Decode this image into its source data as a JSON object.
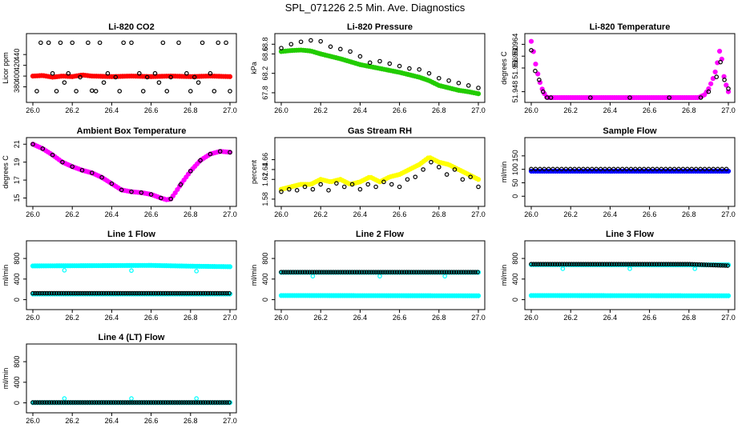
{
  "page_title": "SPL_071226  2.5 Min. Ave. Diagnostics",
  "chart_data": [
    {
      "type": "scatter",
      "title": "Li-820 CO2",
      "ylabel": "Licor ppm",
      "xlim": [
        26.0,
        27.0
      ],
      "ylim": [
        360,
        470
      ],
      "xticks": [
        "26.0",
        "26.2",
        "26.4",
        "26.6",
        "26.8",
        "27.0"
      ],
      "yticks": [
        {
          "v": 380,
          "t": "380"
        },
        {
          "v": 400,
          "t": "400"
        },
        {
          "v": 420,
          "t": "420"
        },
        {
          "v": 440,
          "t": "440"
        }
      ],
      "series": [
        {
          "color": "#ff0000",
          "style": "dense",
          "x": [
            26.0,
            26.05,
            26.1,
            26.15,
            26.2,
            26.25,
            26.3,
            26.4,
            26.5,
            26.6,
            26.7,
            26.8,
            26.9,
            27.0
          ],
          "y": [
            400,
            401,
            398,
            400,
            399,
            402,
            400,
            399,
            400,
            399,
            400,
            399,
            400,
            399
          ]
        },
        {
          "color": "#000000",
          "style": "open",
          "x": [
            26.04,
            26.08,
            26.1,
            26.14,
            26.18,
            26.2,
            26.24,
            26.28,
            26.3,
            26.34,
            26.38,
            26.42,
            26.46,
            26.5,
            26.54,
            26.58,
            26.62,
            26.66,
            26.7,
            26.74,
            26.78,
            26.82,
            26.86,
            26.9,
            26.94,
            26.98,
            26.02,
            26.12,
            26.22,
            26.32,
            26.44,
            26.56,
            26.68,
            26.8,
            26.92,
            27.0,
            26.16,
            26.36,
            26.64,
            26.84
          ],
          "y": [
            462,
            462,
            405,
            462,
            405,
            462,
            398,
            462,
            373,
            462,
            405,
            398,
            462,
            462,
            405,
            398,
            405,
            462,
            398,
            462,
            405,
            398,
            462,
            405,
            462,
            462,
            372,
            372,
            372,
            372,
            372,
            372,
            372,
            372,
            372,
            372,
            388,
            388,
            388,
            388
          ]
        }
      ]
    },
    {
      "type": "scatter",
      "title": "Li-820 Pressure",
      "ylabel": "kPa",
      "xlim": [
        26.0,
        27.0
      ],
      "ylim": [
        67.7,
        68.92
      ],
      "xticks": [
        "26.0",
        "26.2",
        "26.4",
        "26.6",
        "26.8",
        "27.0"
      ],
      "yticks": [
        {
          "v": 67.8,
          "t": "67.8"
        },
        {
          "v": 68.2,
          "t": "68.2"
        },
        {
          "v": 68.6,
          "t": "68.6"
        },
        {
          "v": 68.8,
          "t": "68.8"
        }
      ],
      "series": [
        {
          "color": "#22cc00",
          "style": "dense",
          "x": [
            26.0,
            26.05,
            26.1,
            26.15,
            26.2,
            26.3,
            26.4,
            26.5,
            26.6,
            26.7,
            26.75,
            26.8,
            26.85,
            26.9,
            26.95,
            27.0
          ],
          "y": [
            68.65,
            68.67,
            68.68,
            68.66,
            68.6,
            68.5,
            68.38,
            68.3,
            68.22,
            68.12,
            68.05,
            67.95,
            67.9,
            67.85,
            67.82,
            67.78
          ]
        },
        {
          "color": "#000000",
          "style": "open",
          "x": [
            26.0,
            26.05,
            26.1,
            26.15,
            26.2,
            26.25,
            26.3,
            26.35,
            26.4,
            26.45,
            26.5,
            26.55,
            26.6,
            26.65,
            26.7,
            26.75,
            26.8,
            26.85,
            26.9,
            26.95,
            27.0
          ],
          "y": [
            68.72,
            68.8,
            68.85,
            68.88,
            68.86,
            68.75,
            68.7,
            68.65,
            68.55,
            68.42,
            68.45,
            68.4,
            68.35,
            68.3,
            68.28,
            68.2,
            68.1,
            68.05,
            68.0,
            67.95,
            67.9
          ]
        }
      ]
    },
    {
      "type": "scatter",
      "title": "Li-820 Temperature",
      "ylabel": "degrees C",
      "xlim": [
        26.0,
        27.0
      ],
      "ylim": [
        51.946,
        51.966
      ],
      "xticks": [
        "26.0",
        "26.2",
        "26.4",
        "26.6",
        "26.8",
        "27.0"
      ],
      "yticks": [
        {
          "v": 51.948,
          "t": "51.948"
        },
        {
          "v": 51.956,
          "t": "51.956"
        },
        {
          "v": 51.96,
          "t": "51.960"
        },
        {
          "v": 51.964,
          "t": "51.964"
        }
      ],
      "series": [
        {
          "color": "#ff00ff",
          "style": "dense",
          "x": [
            26.0,
            26.01,
            26.02,
            26.03,
            26.04,
            26.05,
            26.06,
            26.07,
            26.08,
            26.1,
            26.2,
            26.4,
            26.6,
            26.8,
            26.85,
            26.88,
            26.9,
            26.92,
            26.94,
            26.95,
            26.96,
            26.97,
            26.98,
            26.99,
            27.0
          ],
          "y": [
            51.965,
            51.962,
            51.958,
            51.955,
            51.952,
            51.95,
            51.948,
            51.947,
            51.946,
            51.946,
            51.946,
            51.946,
            51.946,
            51.946,
            51.946,
            51.947,
            51.949,
            51.952,
            51.956,
            51.96,
            51.963,
            51.957,
            51.952,
            51.95,
            51.948
          ]
        },
        {
          "color": "#000000",
          "style": "open",
          "x": [
            26.0,
            26.02,
            26.04,
            26.06,
            26.08,
            26.1,
            26.3,
            26.5,
            26.7,
            26.86,
            26.9,
            26.94,
            26.96,
            26.98,
            27.0
          ],
          "y": [
            51.962,
            51.955,
            51.952,
            51.948,
            51.946,
            51.946,
            51.946,
            51.946,
            51.946,
            51.946,
            51.948,
            51.953,
            51.958,
            51.952,
            51.949
          ]
        }
      ]
    },
    {
      "type": "scatter",
      "title": "Ambient Box Temperature",
      "ylabel": "degrees C",
      "xlim": [
        26.0,
        27.0
      ],
      "ylim": [
        14.6,
        21.2
      ],
      "xticks": [
        "26.0",
        "26.2",
        "26.4",
        "26.6",
        "26.8",
        "27.0"
      ],
      "yticks": [
        {
          "v": 15,
          "t": "15"
        },
        {
          "v": 17,
          "t": "17"
        },
        {
          "v": 19,
          "t": "19"
        },
        {
          "v": 21,
          "t": "21"
        }
      ],
      "series": [
        {
          "color": "#ff00ff",
          "style": "dense",
          "x": [
            26.0,
            26.05,
            26.1,
            26.15,
            26.2,
            26.25,
            26.3,
            26.35,
            26.4,
            26.45,
            26.5,
            26.55,
            26.6,
            26.65,
            26.68,
            26.7,
            26.72,
            26.75,
            26.8,
            26.85,
            26.9,
            26.95,
            27.0
          ],
          "y": [
            21.0,
            20.5,
            19.8,
            19.0,
            18.5,
            18.1,
            17.8,
            17.3,
            16.6,
            15.9,
            15.7,
            15.6,
            15.4,
            15.0,
            14.8,
            14.9,
            15.5,
            16.5,
            18.0,
            19.2,
            19.9,
            20.2,
            20.1
          ]
        },
        {
          "color": "#000000",
          "style": "open",
          "x": [
            26.0,
            26.05,
            26.1,
            26.15,
            26.2,
            26.25,
            26.3,
            26.35,
            26.4,
            26.45,
            26.5,
            26.55,
            26.6,
            26.65,
            26.7,
            26.75,
            26.8,
            26.85,
            26.9,
            26.95,
            27.0
          ],
          "y": [
            21.0,
            20.5,
            19.8,
            19.0,
            18.5,
            18.1,
            17.8,
            17.3,
            16.6,
            15.9,
            15.7,
            15.6,
            15.4,
            15.0,
            14.9,
            16.5,
            18.0,
            19.2,
            19.9,
            20.2,
            20.1
          ]
        }
      ]
    },
    {
      "type": "scatter",
      "title": "Gas Stream RH",
      "ylabel": "percent",
      "xlim": [
        26.0,
        27.0
      ],
      "ylim": [
        1.575,
        1.695
      ],
      "xticks": [
        "26.0",
        "26.2",
        "26.4",
        "26.6",
        "26.8",
        "27.0"
      ],
      "yticks": [
        {
          "v": 1.58,
          "t": "1.58"
        },
        {
          "v": 1.62,
          "t": "1.62"
        },
        {
          "v": 1.64,
          "t": "1.64"
        },
        {
          "v": 1.66,
          "t": "1.66"
        }
      ],
      "series": [
        {
          "color": "#ffff00",
          "style": "dense",
          "x": [
            26.0,
            26.05,
            26.1,
            26.15,
            26.2,
            26.25,
            26.3,
            26.35,
            26.4,
            26.45,
            26.5,
            26.55,
            26.6,
            26.65,
            26.7,
            26.75,
            26.8,
            26.85,
            26.9,
            26.95,
            27.0
          ],
          "y": [
            1.6,
            1.605,
            1.61,
            1.61,
            1.62,
            1.615,
            1.62,
            1.61,
            1.615,
            1.625,
            1.615,
            1.625,
            1.63,
            1.64,
            1.65,
            1.665,
            1.655,
            1.65,
            1.64,
            1.63,
            1.62
          ]
        },
        {
          "color": "#000000",
          "style": "open",
          "x": [
            26.0,
            26.04,
            26.08,
            26.12,
            26.16,
            26.2,
            26.24,
            26.28,
            26.32,
            26.36,
            26.4,
            26.44,
            26.48,
            26.52,
            26.56,
            26.6,
            26.64,
            26.68,
            26.72,
            26.76,
            26.8,
            26.84,
            26.88,
            26.92,
            26.96,
            27.0
          ],
          "y": [
            1.595,
            1.6,
            1.598,
            1.605,
            1.6,
            1.61,
            1.598,
            1.612,
            1.605,
            1.61,
            1.6,
            1.61,
            1.605,
            1.615,
            1.61,
            1.605,
            1.62,
            1.625,
            1.64,
            1.655,
            1.645,
            1.63,
            1.64,
            1.62,
            1.625,
            1.605
          ]
        }
      ]
    },
    {
      "type": "scatter",
      "title": "Sample Flow",
      "ylabel": "ml/min",
      "xlim": [
        26.0,
        27.0
      ],
      "ylim": [
        -20,
        200
      ],
      "xticks": [
        "26.0",
        "26.2",
        "26.4",
        "26.6",
        "26.8",
        "27.0"
      ],
      "yticks": [
        {
          "v": 0,
          "t": "0"
        },
        {
          "v": 50,
          "t": "50"
        },
        {
          "v": 100,
          "t": "100"
        },
        {
          "v": 150,
          "t": "150"
        }
      ],
      "series": [
        {
          "color": "#0000ff",
          "style": "dense",
          "x": [
            26.0,
            27.0
          ],
          "y": [
            93,
            93
          ]
        },
        {
          "color": "#000000",
          "style": "open",
          "x": [
            26.0,
            27.0
          ],
          "y": [
            101,
            101
          ],
          "step": 0.022
        }
      ]
    },
    {
      "type": "scatter",
      "title": "Line 1 Flow",
      "ylabel": "ml/min",
      "xlim": [
        26.0,
        27.0
      ],
      "ylim": [
        -100,
        1050
      ],
      "xticks": [
        "26.0",
        "26.2",
        "26.4",
        "26.6",
        "26.8",
        "27.0"
      ],
      "yticks": [
        {
          "v": 0,
          "t": "0"
        },
        {
          "v": 400,
          "t": "400"
        },
        {
          "v": 800,
          "t": "800"
        }
      ],
      "series": [
        {
          "color": "#00ffff",
          "style": "dense",
          "x": [
            26.0,
            26.3,
            26.6,
            26.8,
            27.0
          ],
          "y": [
            655,
            660,
            665,
            650,
            640
          ]
        },
        {
          "color": "#00ffff",
          "style": "open",
          "x": [
            26.16,
            26.5,
            26.83
          ],
          "y": [
            570,
            565,
            555
          ]
        },
        {
          "color": "#00ffff",
          "style": "dense",
          "x": [
            26.0,
            27.0
          ],
          "y": [
            110,
            110
          ]
        },
        {
          "color": "#000000",
          "style": "open",
          "x": [
            26.0,
            27.0
          ],
          "y": [
            125,
            125
          ],
          "step": 0.012
        }
      ]
    },
    {
      "type": "scatter",
      "title": "Line 2 Flow",
      "ylabel": "ml/min",
      "xlim": [
        26.0,
        27.0
      ],
      "ylim": [
        -100,
        1050
      ],
      "xticks": [
        "26.0",
        "26.2",
        "26.4",
        "26.6",
        "26.8",
        "27.0"
      ],
      "yticks": [
        {
          "v": 0,
          "t": "0"
        },
        {
          "v": 400,
          "t": "400"
        },
        {
          "v": 800,
          "t": "800"
        }
      ],
      "series": [
        {
          "color": "#00ffff",
          "style": "dense",
          "x": [
            26.0,
            27.0
          ],
          "y": [
            530,
            530
          ]
        },
        {
          "color": "#00ffff",
          "style": "open",
          "x": [
            26.16,
            26.5,
            26.83
          ],
          "y": [
            455,
            455,
            455
          ]
        },
        {
          "color": "#00ffff",
          "style": "dense",
          "x": [
            26.0,
            27.0
          ],
          "y": [
            80,
            75
          ]
        },
        {
          "color": "#000000",
          "style": "open",
          "x": [
            26.0,
            27.0
          ],
          "y": [
            535,
            535
          ],
          "step": 0.012
        }
      ]
    },
    {
      "type": "scatter",
      "title": "Line 3 Flow",
      "ylabel": "ml/min",
      "xlim": [
        26.0,
        27.0
      ],
      "ylim": [
        -100,
        1050
      ],
      "xticks": [
        "26.0",
        "26.2",
        "26.4",
        "26.6",
        "26.8",
        "27.0"
      ],
      "yticks": [
        {
          "v": 0,
          "t": "0"
        },
        {
          "v": 400,
          "t": "400"
        },
        {
          "v": 800,
          "t": "800"
        }
      ],
      "series": [
        {
          "color": "#00ffff",
          "style": "dense",
          "x": [
            26.0,
            27.0
          ],
          "y": [
            680,
            675
          ]
        },
        {
          "color": "#00ffff",
          "style": "open",
          "x": [
            26.16,
            26.5,
            26.83
          ],
          "y": [
            600,
            600,
            600
          ]
        },
        {
          "color": "#00ffff",
          "style": "dense",
          "x": [
            26.0,
            27.0
          ],
          "y": [
            80,
            75
          ]
        },
        {
          "color": "#000000",
          "style": "open",
          "x": [
            26.0,
            26.8,
            27.0
          ],
          "y": [
            690,
            690,
            660
          ],
          "step": 0.012
        }
      ]
    },
    {
      "type": "scatter",
      "title": "Line 4 (LT) Flow",
      "ylabel": "ml/min",
      "xlim": [
        26.0,
        27.0
      ],
      "ylim": [
        -100,
        1050
      ],
      "xticks": [
        "26.0",
        "26.2",
        "26.4",
        "26.6",
        "26.8",
        "27.0"
      ],
      "yticks": [
        {
          "v": 0,
          "t": "0"
        },
        {
          "v": 400,
          "t": "400"
        },
        {
          "v": 800,
          "t": "800"
        }
      ],
      "series": [
        {
          "color": "#00ffff",
          "style": "dense",
          "x": [
            26.0,
            27.0
          ],
          "y": [
            5,
            5
          ]
        },
        {
          "color": "#00ffff",
          "style": "open",
          "x": [
            26.16,
            26.5,
            26.83
          ],
          "y": [
            85,
            85,
            85
          ]
        },
        {
          "color": "#000000",
          "style": "open",
          "x": [
            26.0,
            27.0
          ],
          "y": [
            8,
            8
          ],
          "step": 0.012
        }
      ]
    }
  ]
}
